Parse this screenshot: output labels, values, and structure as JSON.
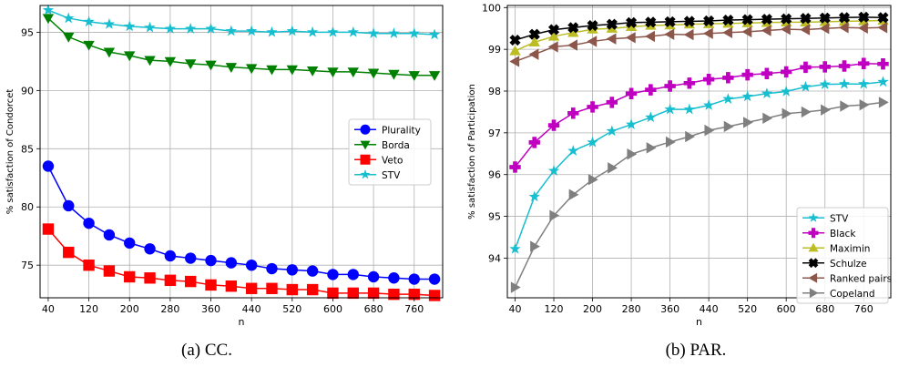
{
  "chart_data": [
    {
      "type": "line",
      "caption": "(a) CC.",
      "xlabel": "n",
      "ylabel": "% satisfaction of Condorcet",
      "xlim": [
        24,
        816
      ],
      "ylim": [
        72.2,
        97.3
      ],
      "x_ticks": [
        40,
        120,
        200,
        280,
        360,
        440,
        520,
        600,
        680,
        760
      ],
      "y_ticks": [
        75,
        80,
        85,
        90,
        95
      ],
      "grid": true,
      "legend_position": "center-right",
      "x": [
        40,
        80,
        120,
        160,
        200,
        240,
        280,
        320,
        360,
        400,
        440,
        480,
        520,
        560,
        600,
        640,
        680,
        720,
        760,
        800
      ],
      "series": [
        {
          "name": "Plurality",
          "color": "#0000ff",
          "marker": "circle",
          "values": [
            83.5,
            80.1,
            78.6,
            77.6,
            76.9,
            76.4,
            75.8,
            75.6,
            75.4,
            75.2,
            75.0,
            74.7,
            74.6,
            74.5,
            74.2,
            74.2,
            74.0,
            73.9,
            73.8,
            73.8
          ]
        },
        {
          "name": "Borda",
          "color": "#008000",
          "marker": "triangle-down",
          "values": [
            96.2,
            94.6,
            93.9,
            93.3,
            93.0,
            92.6,
            92.5,
            92.3,
            92.2,
            92.0,
            91.9,
            91.8,
            91.8,
            91.7,
            91.6,
            91.6,
            91.5,
            91.4,
            91.3,
            91.3
          ]
        },
        {
          "name": "Veto",
          "color": "#ff0000",
          "marker": "square",
          "values": [
            78.1,
            76.1,
            75.0,
            74.5,
            74.0,
            73.9,
            73.7,
            73.6,
            73.3,
            73.2,
            73.0,
            73.0,
            72.9,
            72.9,
            72.6,
            72.6,
            72.6,
            72.5,
            72.5,
            72.4
          ]
        },
        {
          "name": "STV",
          "color": "#17becf",
          "marker": "star",
          "values": [
            96.9,
            96.2,
            95.9,
            95.7,
            95.5,
            95.4,
            95.3,
            95.3,
            95.3,
            95.1,
            95.1,
            95.0,
            95.1,
            95.0,
            95.0,
            95.0,
            94.9,
            94.9,
            94.9,
            94.8
          ]
        }
      ]
    },
    {
      "type": "line",
      "caption": "(b) PAR.",
      "xlabel": "n",
      "ylabel": "% satisfaction of Participation",
      "xlim": [
        24,
        816
      ],
      "ylim": [
        93.05,
        100.05
      ],
      "x_ticks": [
        40,
        120,
        200,
        280,
        360,
        440,
        520,
        600,
        680,
        760
      ],
      "y_ticks": [
        94,
        95,
        96,
        97,
        98,
        99,
        100
      ],
      "grid": true,
      "legend_position": "bottom-right",
      "x": [
        40,
        80,
        120,
        160,
        200,
        240,
        280,
        320,
        360,
        400,
        440,
        480,
        520,
        560,
        600,
        640,
        680,
        720,
        760,
        800
      ],
      "series": [
        {
          "name": "STV",
          "color": "#17becf",
          "marker": "star",
          "values": [
            94.22,
            95.47,
            96.09,
            96.57,
            96.77,
            97.04,
            97.2,
            97.37,
            97.56,
            97.56,
            97.66,
            97.81,
            97.87,
            97.94,
            97.99,
            98.1,
            98.16,
            98.17,
            98.17,
            98.22
          ]
        },
        {
          "name": "Black",
          "color": "#c000c0",
          "marker": "plus",
          "values": [
            96.18,
            96.77,
            97.18,
            97.47,
            97.62,
            97.73,
            97.94,
            98.03,
            98.12,
            98.19,
            98.28,
            98.32,
            98.39,
            98.42,
            98.46,
            98.57,
            98.58,
            98.6,
            98.66,
            98.65
          ]
        },
        {
          "name": "Maximin",
          "color": "#bcbd22",
          "marker": "triangle-up",
          "values": [
            98.96,
            99.17,
            99.31,
            99.4,
            99.48,
            99.5,
            99.54,
            99.57,
            99.58,
            99.6,
            99.61,
            99.62,
            99.63,
            99.64,
            99.65,
            99.65,
            99.66,
            99.67,
            99.68,
            99.69
          ]
        },
        {
          "name": "Schulze",
          "color": "#000000",
          "marker": "x",
          "values": [
            99.22,
            99.36,
            99.47,
            99.52,
            99.57,
            99.6,
            99.64,
            99.65,
            99.66,
            99.67,
            99.68,
            99.7,
            99.71,
            99.72,
            99.73,
            99.74,
            99.75,
            99.76,
            99.77,
            99.76
          ]
        },
        {
          "name": "Ranked pairs",
          "color": "#8c564b",
          "marker": "triangle-left",
          "values": [
            98.71,
            98.88,
            99.06,
            99.1,
            99.19,
            99.25,
            99.28,
            99.31,
            99.36,
            99.35,
            99.38,
            99.4,
            99.42,
            99.45,
            99.48,
            99.47,
            99.5,
            99.52,
            99.51,
            99.52
          ]
        },
        {
          "name": "Copeland",
          "color": "#7f7f7f",
          "marker": "triangle-right",
          "values": [
            93.3,
            94.28,
            95.02,
            95.52,
            95.88,
            96.16,
            96.49,
            96.64,
            96.78,
            96.91,
            97.06,
            97.15,
            97.25,
            97.35,
            97.46,
            97.5,
            97.55,
            97.64,
            97.67,
            97.73
          ]
        }
      ]
    }
  ]
}
